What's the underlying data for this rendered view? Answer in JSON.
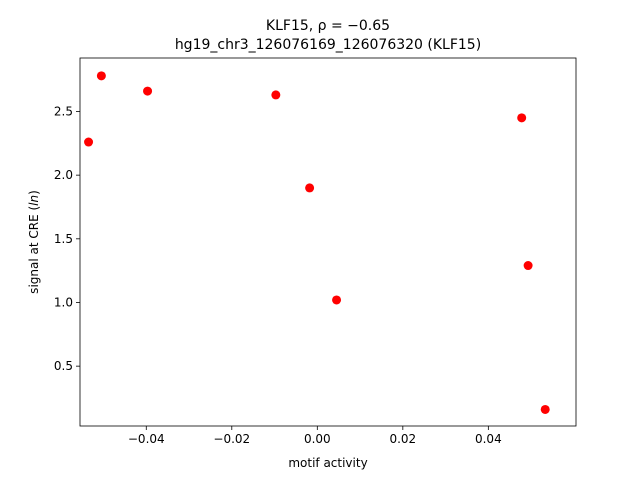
{
  "chart_data": {
    "type": "scatter",
    "title_line1": "KLF15, ρ = −0.65",
    "title_line2": "hg19_chr3_126076169_126076320 (KLF15)",
    "xlabel": "motif activity",
    "ylabel": "signal at CRE (ln)",
    "xlim": [
      -0.0555,
      0.0605
    ],
    "ylim": [
      0.03,
      2.92
    ],
    "xticks": [
      -0.04,
      -0.02,
      0.0,
      0.02,
      0.04
    ],
    "xtick_labels": [
      "−0.04",
      "−0.02",
      "0.00",
      "0.02",
      "0.04"
    ],
    "yticks": [
      0.5,
      1.0,
      1.5,
      2.0,
      2.5
    ],
    "ytick_labels": [
      "0.5",
      "1.0",
      "1.5",
      "2.0",
      "2.5"
    ],
    "grid": false,
    "marker_color": "#ff0000",
    "points": [
      {
        "x": -0.0535,
        "y": 2.26
      },
      {
        "x": -0.0505,
        "y": 2.78
      },
      {
        "x": -0.0397,
        "y": 2.66
      },
      {
        "x": -0.0097,
        "y": 2.63
      },
      {
        "x": -0.0018,
        "y": 1.9
      },
      {
        "x": 0.0045,
        "y": 1.02
      },
      {
        "x": 0.0478,
        "y": 2.45
      },
      {
        "x": 0.0493,
        "y": 1.29
      },
      {
        "x": 0.0533,
        "y": 0.16
      }
    ]
  }
}
